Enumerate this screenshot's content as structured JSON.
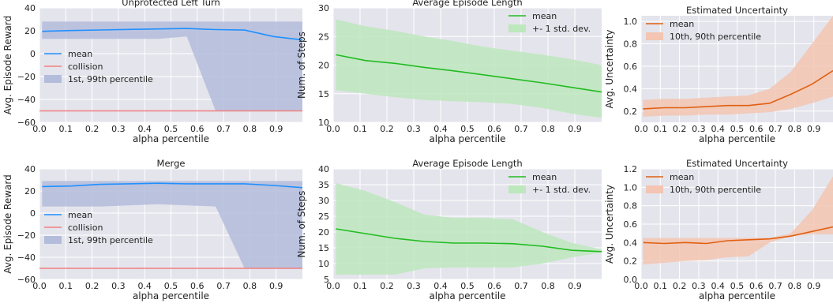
{
  "colors": {
    "panel_bg": "#e4e4ec",
    "grid": "#ffffff",
    "blue": "#1e90ff",
    "blue_band": "#b4bcdc",
    "red": "#f08080",
    "green": "#22bb22",
    "green_band": "#bde8bd",
    "orange": "#e06010",
    "orange_band": "#f3c5b2"
  },
  "chart_data": [
    {
      "type": "line",
      "title": "Unprotected Left Turn",
      "xlabel": "alpha percentile",
      "ylabel": "Avg. Episode Reward",
      "xlim": [
        0.0,
        1.0
      ],
      "ylim": [
        -60,
        40
      ],
      "xticks": [
        "0.0",
        "0.1",
        "0.2",
        "0.3",
        "0.4",
        "0.5",
        "0.6",
        "0.7",
        "0.8",
        "0.9"
      ],
      "xtick_values": [
        0.0,
        0.1,
        0.2,
        0.3,
        0.4,
        0.5,
        0.6,
        0.7,
        0.8,
        0.9
      ],
      "yticks": [
        "40",
        "20",
        "0",
        "−20",
        "−40",
        "−60"
      ],
      "ytick_values": [
        40,
        20,
        0,
        -20,
        -40,
        -60
      ],
      "legend_position": "middle-left",
      "x": [
        0.01,
        0.12,
        0.23,
        0.34,
        0.45,
        0.56,
        0.67,
        0.78,
        0.89,
        1.0
      ],
      "series": [
        {
          "name": "mean",
          "kind": "line",
          "color": "#1e90ff",
          "values": [
            19.5,
            20.2,
            20.7,
            21.2,
            21.6,
            22.0,
            21.0,
            20.6,
            15.0,
            12.0
          ]
        },
        {
          "name": "collision",
          "kind": "hline",
          "color": "#f08080",
          "value": -50
        },
        {
          "name": "1st, 99th percentile",
          "kind": "band",
          "color": "#b4bcdc",
          "lower": [
            13,
            13,
            13,
            13,
            13,
            15,
            -50,
            -50,
            -50,
            -50
          ],
          "upper": [
            28,
            28,
            28,
            28,
            28,
            28,
            28,
            28,
            28,
            28
          ]
        }
      ]
    },
    {
      "type": "line",
      "title": "Average Episode Length",
      "xlabel": "alpha percentile",
      "ylabel": "Num. of Steps",
      "xlim": [
        0.0,
        1.0
      ],
      "ylim": [
        10,
        30
      ],
      "xticks": [
        "0.0",
        "0.1",
        "0.2",
        "0.3",
        "0.4",
        "0.5",
        "0.6",
        "0.7",
        "0.8",
        "0.9"
      ],
      "xtick_values": [
        0.0,
        0.1,
        0.2,
        0.3,
        0.4,
        0.5,
        0.6,
        0.7,
        0.8,
        0.9
      ],
      "yticks": [
        "30",
        "25",
        "20",
        "15",
        "10"
      ],
      "ytick_values": [
        30,
        25,
        20,
        15,
        10
      ],
      "legend_position": "top-right",
      "x": [
        0.01,
        0.12,
        0.23,
        0.34,
        0.45,
        0.56,
        0.67,
        0.78,
        0.89,
        1.0
      ],
      "series": [
        {
          "name": "mean",
          "kind": "line",
          "color": "#22bb22",
          "values": [
            21.8,
            20.8,
            20.3,
            19.6,
            19.0,
            18.3,
            17.6,
            16.9,
            16.1,
            15.3
          ]
        },
        {
          "name": "+- 1 std. dev.",
          "kind": "band",
          "color": "#bde8bd",
          "lower": [
            15.6,
            15.0,
            14.4,
            13.9,
            13.7,
            13.5,
            13.2,
            12.5,
            11.5,
            10.8
          ],
          "upper": [
            28.0,
            26.8,
            26.0,
            25.0,
            24.2,
            23.2,
            22.5,
            21.8,
            21.0,
            20.0
          ]
        }
      ]
    },
    {
      "type": "line",
      "title": "Estimated Uncertainty",
      "xlabel": "alpha percentile",
      "ylabel": "Avg. Uncertainty",
      "xlim": [
        0.0,
        1.0
      ],
      "ylim": [
        0.1,
        1.05
      ],
      "xticks": [
        "0.0",
        "0.1",
        "0.2",
        "0.3",
        "0.4",
        "0.5",
        "0.6",
        "0.7",
        "0.8",
        "0.9"
      ],
      "xtick_values": [
        0.0,
        0.1,
        0.2,
        0.3,
        0.4,
        0.5,
        0.6,
        0.7,
        0.8,
        0.9
      ],
      "yticks": [
        "1.0",
        "0.8",
        "0.6",
        "0.4",
        "0.2"
      ],
      "ytick_values": [
        1.0,
        0.8,
        0.6,
        0.4,
        0.2
      ],
      "legend_position": "top-left",
      "x": [
        0.01,
        0.12,
        0.23,
        0.34,
        0.45,
        0.56,
        0.67,
        0.78,
        0.89,
        1.0
      ],
      "series": [
        {
          "name": "mean",
          "kind": "line",
          "color": "#e06010",
          "values": [
            0.22,
            0.23,
            0.23,
            0.24,
            0.25,
            0.25,
            0.27,
            0.35,
            0.44,
            0.56
          ]
        },
        {
          "name": "10th, 90th percentile",
          "kind": "band",
          "color": "#f3c5b2",
          "lower": [
            0.15,
            0.16,
            0.16,
            0.17,
            0.17,
            0.18,
            0.19,
            0.22,
            0.27,
            0.33
          ],
          "upper": [
            0.3,
            0.31,
            0.31,
            0.32,
            0.33,
            0.34,
            0.4,
            0.55,
            0.8,
            1.05
          ]
        }
      ]
    },
    {
      "type": "line",
      "title": "Merge",
      "xlabel": "alpha percentile",
      "ylabel": "Avg. Episode Reward",
      "xlim": [
        0.0,
        1.0
      ],
      "ylim": [
        -60,
        40
      ],
      "xticks": [
        "0.0",
        "0.1",
        "0.2",
        "0.3",
        "0.4",
        "0.5",
        "0.6",
        "0.7",
        "0.8",
        "0.9"
      ],
      "xtick_values": [
        0.0,
        0.1,
        0.2,
        0.3,
        0.4,
        0.5,
        0.6,
        0.7,
        0.8,
        0.9
      ],
      "yticks": [
        "40",
        "20",
        "0",
        "−20",
        "−40",
        "−60"
      ],
      "ytick_values": [
        40,
        20,
        0,
        -20,
        -40,
        -60
      ],
      "legend_position": "middle-left",
      "x": [
        0.01,
        0.12,
        0.23,
        0.34,
        0.45,
        0.56,
        0.67,
        0.78,
        0.89,
        1.0
      ],
      "series": [
        {
          "name": "mean",
          "kind": "line",
          "color": "#1e90ff",
          "values": [
            24.0,
            24.5,
            26.0,
            26.5,
            27.0,
            26.5,
            26.5,
            26.5,
            25.0,
            23.0
          ]
        },
        {
          "name": "collision",
          "kind": "hline",
          "color": "#f08080",
          "value": -50
        },
        {
          "name": "1st, 99th percentile",
          "kind": "band",
          "color": "#b4bcdc",
          "lower": [
            6,
            6,
            6,
            7,
            8,
            7,
            6,
            -50,
            -50,
            -50
          ],
          "upper": [
            29,
            29,
            29,
            29,
            29,
            29,
            29,
            29,
            29,
            29
          ]
        }
      ]
    },
    {
      "type": "line",
      "title": "Average Episode Length",
      "xlabel": "alpha percentile",
      "ylabel": "Num. of Steps",
      "xlim": [
        0.0,
        1.0
      ],
      "ylim": [
        5,
        40
      ],
      "xticks": [
        "0.0",
        "0.1",
        "0.2",
        "0.3",
        "0.4",
        "0.5",
        "0.6",
        "0.7",
        "0.8",
        "0.9"
      ],
      "xtick_values": [
        0.0,
        0.1,
        0.2,
        0.3,
        0.4,
        0.5,
        0.6,
        0.7,
        0.8,
        0.9
      ],
      "yticks": [
        "40",
        "35",
        "30",
        "25",
        "20",
        "15",
        "10",
        "5"
      ],
      "ytick_values": [
        40,
        35,
        30,
        25,
        20,
        15,
        10,
        5
      ],
      "legend_position": "top-right",
      "x": [
        0.01,
        0.12,
        0.23,
        0.34,
        0.45,
        0.56,
        0.67,
        0.78,
        0.89,
        1.0
      ],
      "series": [
        {
          "name": "mean",
          "kind": "line",
          "color": "#22bb22",
          "values": [
            21.0,
            19.5,
            18.0,
            17.0,
            16.5,
            16.5,
            16.3,
            15.5,
            14.2,
            13.8
          ]
        },
        {
          "name": "+- 1 std. dev.",
          "kind": "band",
          "color": "#bde8bd",
          "lower": [
            6.5,
            6.5,
            6.5,
            8.5,
            8.8,
            8.8,
            8.8,
            10.0,
            12.0,
            13.5
          ],
          "upper": [
            35.5,
            33.0,
            29.5,
            25.5,
            24.5,
            24.5,
            24.0,
            20.0,
            16.5,
            14.5
          ]
        }
      ]
    },
    {
      "type": "line",
      "title": "Estimated Uncertainty",
      "xlabel": "alpha percentile",
      "ylabel": "Avg. Uncertainty",
      "xlim": [
        0.0,
        1.0
      ],
      "ylim": [
        0.0,
        1.2
      ],
      "xticks": [
        "0.0",
        "0.1",
        "0.2",
        "0.3",
        "0.4",
        "0.5",
        "0.6",
        "0.7",
        "0.8",
        "0.9"
      ],
      "xtick_values": [
        0.0,
        0.1,
        0.2,
        0.3,
        0.4,
        0.5,
        0.6,
        0.7,
        0.8,
        0.9
      ],
      "yticks": [
        "1.2",
        "1.0",
        "0.8",
        "0.6",
        "0.4",
        "0.2",
        "0.0"
      ],
      "ytick_values": [
        1.2,
        1.0,
        0.8,
        0.6,
        0.4,
        0.2,
        0.0
      ],
      "legend_position": "top-left",
      "x": [
        0.01,
        0.12,
        0.23,
        0.34,
        0.45,
        0.56,
        0.67,
        0.78,
        0.89,
        1.0
      ],
      "series": [
        {
          "name": "mean",
          "kind": "line",
          "color": "#e06010",
          "values": [
            0.4,
            0.39,
            0.4,
            0.39,
            0.42,
            0.43,
            0.44,
            0.47,
            0.52,
            0.57
          ]
        },
        {
          "name": "10th, 90th percentile",
          "kind": "band",
          "color": "#f3c5b2",
          "lower": [
            0.16,
            0.18,
            0.2,
            0.21,
            0.24,
            0.25,
            0.4,
            0.47,
            0.49,
            0.49
          ],
          "upper": [
            0.45,
            0.45,
            0.45,
            0.45,
            0.45,
            0.45,
            0.45,
            0.5,
            0.75,
            1.12
          ]
        }
      ]
    }
  ]
}
